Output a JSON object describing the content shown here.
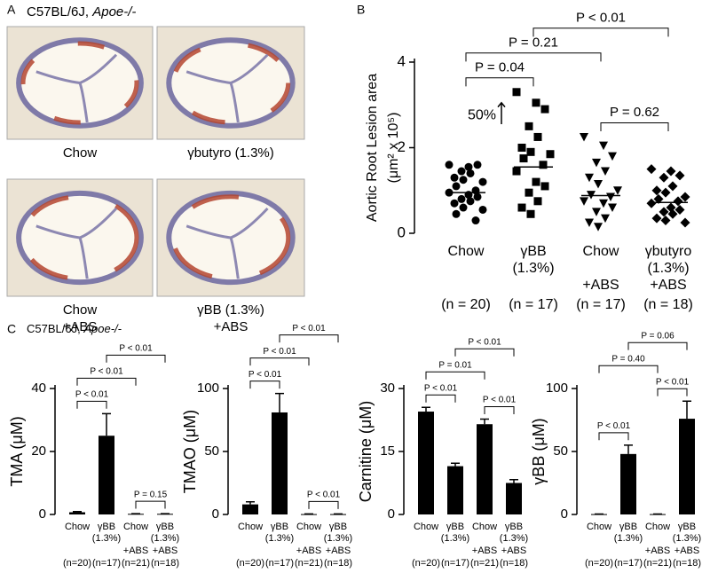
{
  "panel_a": {
    "letter": "A",
    "strain": "C57BL/6J,",
    "genotype": "Apoe-/-",
    "images": [
      [
        "Chow"
      ],
      [
        "γbutyro (1.3%)"
      ],
      [
        "Chow",
        "+ABS"
      ],
      [
        "γBB (1.3%)",
        "+ABS"
      ]
    ]
  },
  "panel_b": {
    "letter": "B"
  },
  "panel_c": {
    "letter": "C",
    "strain": "C57BL/6J,",
    "genotype": "Apoe-/-"
  },
  "chart_data": [
    {
      "type": "strip",
      "ylabel": [
        "Aortic Root Lesion area",
        "(μm² x 10⁵)"
      ],
      "categories": [
        [
          "Chow"
        ],
        [
          "γBB",
          "(1.3%)"
        ],
        [
          "Chow"
        ],
        [
          "γbutyro",
          "(1.3%)"
        ]
      ],
      "treatments": [
        null,
        null,
        "+ABS",
        "+ABS"
      ],
      "n_labels": [
        "(n = 20)",
        "(n = 17)",
        "(n = 17)",
        "(n = 18)"
      ],
      "ylim": [
        0,
        4
      ],
      "yticks": [
        0,
        2,
        4
      ],
      "color": "#000000",
      "annotation": "50%",
      "series": [
        {
          "marker": "circle",
          "mean": 0.95,
          "values": [
            1.6,
            1.55,
            1.6,
            1.45,
            1.4,
            1.3,
            1.25,
            1.2,
            1.1,
            1.0,
            0.95,
            0.9,
            0.85,
            0.8,
            0.75,
            0.7,
            0.6,
            0.55,
            0.45,
            0.3
          ]
        },
        {
          "marker": "square",
          "mean": 1.55,
          "values": [
            3.3,
            3.05,
            2.9,
            2.5,
            2.25,
            2.0,
            1.9,
            1.85,
            1.75,
            1.6,
            1.45,
            1.2,
            1.1,
            0.95,
            0.75,
            0.6,
            0.45
          ]
        },
        {
          "marker": "triangle-down",
          "mean": 0.88,
          "values": [
            2.25,
            2.05,
            1.8,
            1.65,
            1.45,
            1.3,
            1.15,
            1.0,
            0.9,
            0.85,
            0.75,
            0.7,
            0.6,
            0.5,
            0.35,
            0.25,
            0.15
          ]
        },
        {
          "marker": "diamond",
          "mean": 0.72,
          "values": [
            1.5,
            1.45,
            1.35,
            1.3,
            1.1,
            1.0,
            0.95,
            0.85,
            0.8,
            0.75,
            0.7,
            0.6,
            0.55,
            0.5,
            0.45,
            0.35,
            0.3,
            0.25
          ]
        }
      ],
      "comparisons": [
        {
          "from": 0,
          "to": 1,
          "label": "P = 0.04"
        },
        {
          "from": 2,
          "to": 3,
          "label": "P = 0.62"
        },
        {
          "from": 0,
          "to": 2,
          "label": "P = 0.21"
        },
        {
          "from": 1,
          "to": 3,
          "label": "P < 0.01"
        }
      ]
    },
    {
      "type": "bar",
      "ylabel": "TMA (μM)",
      "categories": [
        [
          "Chow"
        ],
        [
          "γBB",
          "(1.3%)"
        ],
        [
          "Chow"
        ],
        [
          "γBB",
          "(1.3%)"
        ]
      ],
      "treatments": [
        null,
        null,
        "+ABS",
        "+ABS"
      ],
      "n_labels": [
        "(n=20)",
        "(n=17)",
        "(n=21)",
        "(n=18)"
      ],
      "values": [
        0.7,
        25,
        0.2,
        0.2
      ],
      "errors": [
        0.2,
        7,
        0.05,
        0.05
      ],
      "color": "#000000",
      "ylim": [
        0,
        40
      ],
      "yticks": [
        0,
        20,
        40
      ],
      "comparisons": [
        {
          "from": 0,
          "to": 2,
          "label": "P < 0.01"
        },
        {
          "from": 0,
          "to": 1,
          "label": "P < 0.01"
        },
        {
          "from": 1,
          "to": 3,
          "label": "P < 0.01"
        },
        {
          "from": 2,
          "to": 3,
          "label": "P = 0.15"
        }
      ]
    },
    {
      "type": "bar",
      "ylabel": "TMAO (μM)",
      "categories": [
        [
          "Chow"
        ],
        [
          "γBB",
          "(1.3%)"
        ],
        [
          "Chow"
        ],
        [
          "γBB",
          "(1.3%)"
        ]
      ],
      "treatments": [
        null,
        null,
        "+ABS",
        "+ABS"
      ],
      "n_labels": [
        "(n=20)",
        "(n=17)",
        "(n=21)",
        "(n=18)"
      ],
      "values": [
        8,
        81,
        0.3,
        0.3
      ],
      "errors": [
        2,
        15,
        0.1,
        0.1
      ],
      "color": "#000000",
      "ylim": [
        0,
        100
      ],
      "yticks": [
        0,
        50,
        100
      ],
      "comparisons": [
        {
          "from": 0,
          "to": 2,
          "label": "P < 0.01"
        },
        {
          "from": 0,
          "to": 1,
          "label": "P < 0.01"
        },
        {
          "from": 1,
          "to": 3,
          "label": "P < 0.01"
        },
        {
          "from": 2,
          "to": 3,
          "label": "P < 0.01"
        }
      ]
    },
    {
      "type": "bar",
      "ylabel": "Carnitine (μM)",
      "categories": [
        [
          "Chow"
        ],
        [
          "γBB",
          "(1.3%)"
        ],
        [
          "Chow"
        ],
        [
          "γBB",
          "(1.3%)"
        ]
      ],
      "treatments": [
        null,
        null,
        "+ABS",
        "+ABS"
      ],
      "n_labels": [
        "(n=20)",
        "(n=17)",
        "(n=21)",
        "(n=18)"
      ],
      "values": [
        24.5,
        11.5,
        21.5,
        7.5
      ],
      "errors": [
        1,
        0.7,
        1.2,
        0.8
      ],
      "color": "#000000",
      "ylim": [
        0,
        30
      ],
      "yticks": [
        0,
        15,
        30
      ],
      "comparisons": [
        {
          "from": 0,
          "to": 2,
          "label": "P = 0.01"
        },
        {
          "from": 0,
          "to": 1,
          "label": "P < 0.01"
        },
        {
          "from": 1,
          "to": 3,
          "label": "P < 0.01"
        },
        {
          "from": 2,
          "to": 3,
          "label": "P < 0.01"
        }
      ]
    },
    {
      "type": "bar",
      "ylabel": "γBB (μM)",
      "categories": [
        [
          "Chow"
        ],
        [
          "γBB",
          "(1.3%)"
        ],
        [
          "Chow"
        ],
        [
          "γBB",
          "(1.3%)"
        ]
      ],
      "treatments": [
        null,
        null,
        "+ABS",
        "+ABS"
      ],
      "n_labels": [
        "(n=20)",
        "(n=17)",
        "(n=21)",
        "(n=18)"
      ],
      "values": [
        0.3,
        48,
        0.3,
        76
      ],
      "errors": [
        0.05,
        7,
        0.05,
        14
      ],
      "color": "#000000",
      "ylim": [
        0,
        100
      ],
      "yticks": [
        0,
        50,
        100
      ],
      "comparisons": [
        {
          "from": 0,
          "to": 2,
          "label": "P = 0.40"
        },
        {
          "from": 0,
          "to": 1,
          "label": "P < 0.01"
        },
        {
          "from": 1,
          "to": 3,
          "label": "P = 0.06"
        },
        {
          "from": 2,
          "to": 3,
          "label": "P < 0.01"
        }
      ]
    }
  ]
}
